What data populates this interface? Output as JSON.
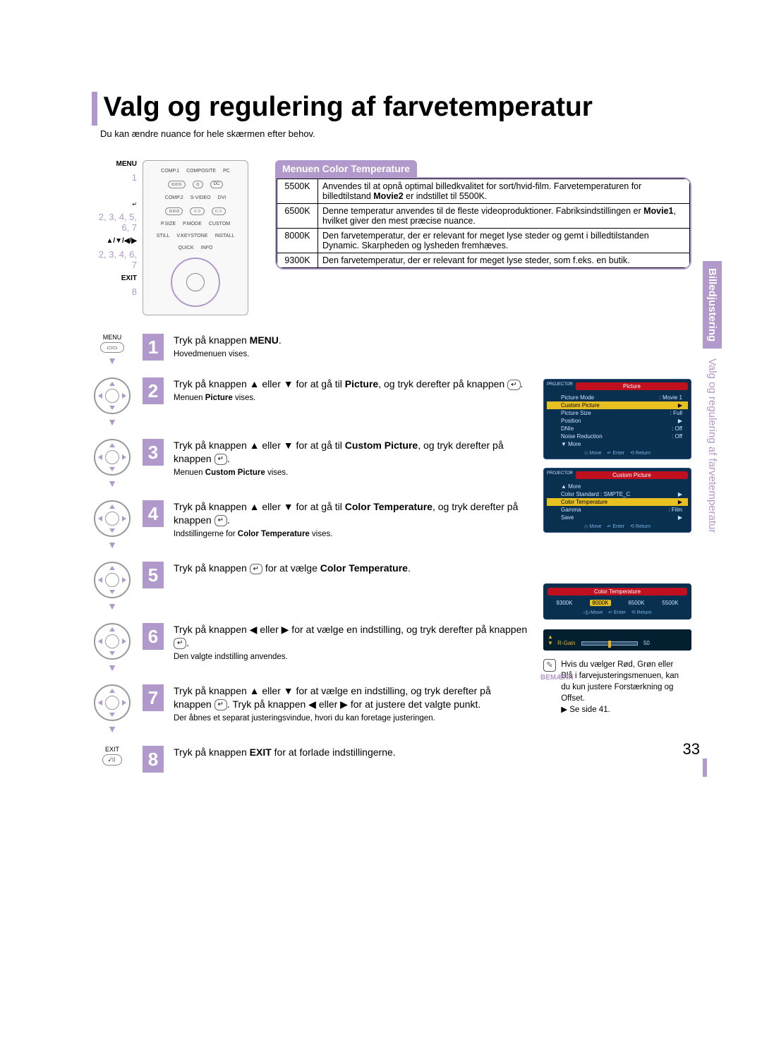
{
  "page_number": "33",
  "accent_color": "#b299cb",
  "title": "Valg og regulering af farvetemperatur",
  "subtitle": "Du kan ændre nuance for hele skærmen efter behov.",
  "side_tab": {
    "section": "Billedjustering",
    "topic": "Valg og regulering af farvetemperatur"
  },
  "remote_labels": {
    "menu": "MENU",
    "menu_step": "1",
    "enter_steps": "2, 3, 4, 5, 6, 7",
    "arrows": "▲/▼/◀/▶",
    "arrow_steps": "2, 3, 4, 6, 7",
    "exit": "EXIT",
    "exit_step": "8"
  },
  "remote_buttons": {
    "row1": [
      "COMP.1",
      "COMPOSITE",
      "PC"
    ],
    "row2": [
      "COMP.2",
      "S-VIDEO",
      "DVI"
    ],
    "row3": [
      "P.SIZE",
      "P.MODE",
      "CUSTOM"
    ],
    "row4": [
      "STILL",
      "V.KEYSTONE",
      "INSTALL"
    ],
    "row5": [
      "QUICK",
      "INFO"
    ],
    "row6": [
      "MENU",
      "EXIT"
    ]
  },
  "menu": {
    "header": "Menuen Color Temperature",
    "rows": [
      {
        "k": "5500K",
        "v": "Anvendes til at opnå optimal billedkvalitet for sort/hvid-film. Farvetemperaturen for billedtilstand <b>Movie2</b> er indstillet til 5500K."
      },
      {
        "k": "6500K",
        "v": "Denne temperatur anvendes til de fleste videoproduktioner. Fabriksindstillingen er <b>Movie1</b>, hvilket giver den mest præcise nuance."
      },
      {
        "k": "8000K",
        "v": "Den farvetemperatur, der er relevant for meget lyse steder og gemt i billedtilstanden Dynamic. Skarpheden og lysheden fremhæves."
      },
      {
        "k": "9300K",
        "v": "Den farvetemperatur, der er relevant for meget lyse steder, som f.eks. en butik."
      }
    ]
  },
  "steps": [
    {
      "n": "1",
      "icon": "menu",
      "main": "Tryk på knappen <b>MENU</b>.",
      "sub": "Hovedmenuen vises."
    },
    {
      "n": "2",
      "icon": "pad",
      "main": "Tryk på knappen ▲ eller ▼ for at gå til <b>Picture</b>, og tryk derefter på knappen <span class='enter-icon'>↵</span>.",
      "sub": "Menuen <b>Picture</b> vises."
    },
    {
      "n": "3",
      "icon": "pad",
      "main": "Tryk på knappen ▲ eller ▼ for at gå til <b>Custom Picture</b>, og tryk derefter på knappen <span class='enter-icon'>↵</span>.",
      "sub": "Menuen <b>Custom Picture</b> vises."
    },
    {
      "n": "4",
      "icon": "pad",
      "main": "Tryk på knappen ▲ eller ▼ for at gå til <b>Color Temperature</b>, og tryk derefter på knappen <span class='enter-icon'>↵</span>.",
      "sub": "Indstillingerne for <b>Color Temperature</b> vises."
    },
    {
      "n": "5",
      "icon": "pad",
      "main": "Tryk på knappen <span class='enter-icon'>↵</span> for at vælge <b>Color Temperature</b>.",
      "sub": ""
    },
    {
      "n": "6",
      "icon": "pad",
      "main": "Tryk på knappen ◀ eller ▶ for at vælge en indstilling, og tryk derefter på knappen <span class='enter-icon'>↵</span>.",
      "sub": "Den valgte indstilling anvendes."
    },
    {
      "n": "7",
      "icon": "pad",
      "main": "Tryk på knappen ▲ eller ▼ for at vælge en indstilling, og tryk derefter på knappen <span class='enter-icon'>↵</span>. Tryk på knappen ◀ eller ▶ for at justere det valgte punkt.",
      "sub": "Der åbnes et separat justeringsvindue, hvori du kan foretage justeringen."
    },
    {
      "n": "8",
      "icon": "exit",
      "main": "Tryk på knappen <b>EXIT</b> for at forlade indstillingerne.",
      "sub": ""
    }
  ],
  "osd_picture": {
    "title_label": "PROJECTOR",
    "title": "Picture",
    "rows": [
      {
        "l": "Picture Mode",
        "r": ": Movie 1",
        "hl": false
      },
      {
        "l": "Custom Picture",
        "r": "▶",
        "hl": true
      },
      {
        "l": "Picture Size",
        "r": ": Full",
        "hl": false
      },
      {
        "l": "Position",
        "r": "▶",
        "hl": false
      },
      {
        "l": "DNIe",
        "r": ": Off",
        "hl": false
      },
      {
        "l": "Noise Reduction",
        "r": ": Off",
        "hl": false
      },
      {
        "l": "▼ More",
        "r": "",
        "hl": false
      }
    ],
    "footer": [
      "◇ Move",
      "↵ Enter",
      "⟲ Return"
    ]
  },
  "osd_custom": {
    "title_label": "PROJECTOR",
    "title": "Custom Picture",
    "rows": [
      {
        "l": "▲ More",
        "r": "",
        "hl": false
      },
      {
        "l": "Color Standard : SMPTE_C",
        "r": "▶",
        "hl": false
      },
      {
        "l": "Color Temperature",
        "r": "▶",
        "hl": true
      },
      {
        "l": "Gamma",
        "r": ": Film",
        "hl": false
      },
      {
        "l": "Save",
        "r": "▶",
        "hl": false
      }
    ],
    "footer": [
      "◇ Move",
      "↵ Enter",
      "⟲ Return"
    ]
  },
  "osd_ct": {
    "title": "Color Temperature",
    "options": [
      "9300K",
      "8000K",
      "6500K",
      "5500K"
    ],
    "selected": "8000K",
    "footer": [
      "◁▷Move",
      "↵ Enter",
      "⟲ Return"
    ]
  },
  "osd_rgain": {
    "label": "R-Gain",
    "value": "50",
    "arrows": "▲\n▼"
  },
  "note": {
    "label": "BEMÆRK",
    "text": "Hvis du vælger Rød, Grøn eller Blå i farvejusteringsmenuen, kan du kun justere Forstærkning og Offset.",
    "ref": "▶ Se side 41."
  }
}
